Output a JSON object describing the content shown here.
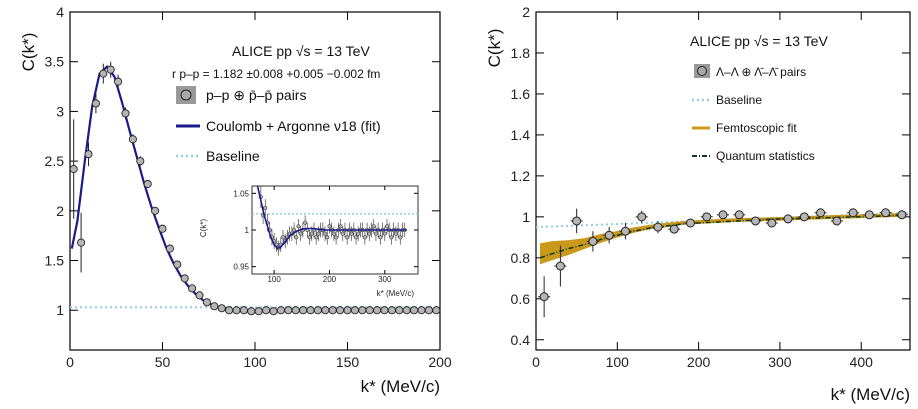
{
  "chart_data": [
    {
      "type": "scatter",
      "panel": "left",
      "ylabel": "C(k*)",
      "xlabel": "k* (MeV/c)",
      "xlim": [
        0,
        200
      ],
      "ylim": [
        0.6,
        4
      ],
      "xticks": [
        0,
        50,
        100,
        150,
        200
      ],
      "yticks": [
        1,
        1.5,
        2,
        2.5,
        3,
        3.5,
        4
      ],
      "annotations": [
        {
          "text": "ALICE pp √s = 13 TeV"
        },
        {
          "text": "r p–p = 1.182 ±0.008 +0.005 −0.002 fm"
        }
      ],
      "legend": [
        {
          "label": "p–p ⊕ p̄–p̄ pairs",
          "kind": "data"
        },
        {
          "label": "Coulomb + Argonne ν18 (fit)",
          "kind": "fit",
          "color": "#1a1a8c"
        },
        {
          "label": "Baseline",
          "kind": "baseline",
          "color": "#8fd0dc"
        }
      ],
      "series": [
        {
          "name": "p–p ⊕ p̄–p̄ pairs",
          "x": [
            2,
            6,
            10,
            14,
            18,
            22,
            26,
            30,
            34,
            38,
            42,
            46,
            50,
            54,
            58,
            62,
            66,
            70,
            74,
            78,
            82,
            86,
            90,
            94,
            98,
            102,
            106,
            110,
            114,
            118,
            122,
            126,
            130,
            134,
            138,
            142,
            146,
            150,
            154,
            158,
            162,
            166,
            170,
            174,
            178,
            182,
            186,
            190,
            194,
            198
          ],
          "y": [
            2.42,
            1.68,
            2.57,
            3.08,
            3.38,
            3.42,
            3.3,
            2.98,
            2.72,
            2.5,
            2.27,
            2.0,
            1.82,
            1.62,
            1.46,
            1.32,
            1.22,
            1.15,
            1.08,
            1.04,
            1.02,
            1.0,
            1.0,
            1.0,
            0.99,
            0.99,
            1.0,
            0.99,
            1.0,
            1.0,
            1.0,
            1.0,
            1.0,
            1.0,
            1.0,
            1.0,
            1.0,
            1.0,
            1.0,
            1.0,
            1.0,
            1.0,
            1.0,
            1.0,
            1.0,
            1.0,
            1.0,
            1.0,
            1.0,
            1.0
          ],
          "err": [
            0.5,
            0.3,
            0.12,
            0.1,
            0.1,
            0.08,
            0.07,
            0.06,
            0.05,
            0.05,
            0.04,
            0.04,
            0.03,
            0.03,
            0.03,
            0.02,
            0.02,
            0.02,
            0.02,
            0.02,
            0.02,
            0.02,
            0.02,
            0.02,
            0.02,
            0.02,
            0.02,
            0.02,
            0.02,
            0.02,
            0.02,
            0.02,
            0.02,
            0.02,
            0.02,
            0.02,
            0.02,
            0.02,
            0.02,
            0.02,
            0.02,
            0.02,
            0.02,
            0.02,
            0.02,
            0.02,
            0.02,
            0.02,
            0.02,
            0.02
          ]
        },
        {
          "name": "Coulomb + Argonne ν18 (fit)",
          "x": [
            1,
            4,
            8,
            12,
            16,
            20,
            24,
            28,
            32,
            36,
            40,
            44,
            48,
            52,
            56,
            60,
            64,
            68,
            72,
            76,
            80,
            84,
            88,
            92,
            96,
            100,
            110,
            120,
            140,
            160,
            180,
            200
          ],
          "y": [
            1.62,
            1.9,
            2.5,
            3.05,
            3.38,
            3.45,
            3.35,
            3.1,
            2.82,
            2.55,
            2.28,
            2.04,
            1.83,
            1.63,
            1.47,
            1.34,
            1.24,
            1.16,
            1.1,
            1.06,
            1.03,
            1.01,
            1.0,
            0.995,
            0.99,
            0.99,
            0.995,
            1.0,
            1.0,
            1.0,
            1.0,
            1.0
          ]
        },
        {
          "name": "Baseline",
          "x": [
            0,
            200
          ],
          "y": [
            1.03,
            1.03
          ]
        }
      ],
      "inset": {
        "ylabel": "C(k*)",
        "xlabel": "k* (MeV/c)",
        "xlim": [
          60,
          360
        ],
        "ylim": [
          0.94,
          1.06
        ],
        "xticks": [
          100,
          200,
          300
        ],
        "yticks": [
          0.95,
          1,
          1.05
        ],
        "data": {
          "x": [
            76,
            80,
            84,
            88,
            92,
            96,
            100,
            104,
            108,
            112,
            116,
            120,
            124,
            128,
            132,
            136,
            140,
            144,
            148,
            152,
            156,
            160,
            164,
            168,
            172,
            176,
            180,
            184,
            188,
            192,
            196,
            200,
            204,
            208,
            212,
            216,
            220,
            224,
            228,
            232,
            236,
            240,
            244,
            248,
            252,
            256,
            260,
            264,
            268,
            272,
            276,
            280,
            284,
            288,
            292,
            296,
            300,
            304,
            308,
            312,
            316,
            320,
            324,
            328,
            332,
            336
          ],
          "y": [
            1.045,
            1.02,
            1.03,
            1.01,
            1.0,
            0.99,
            0.985,
            0.98,
            0.975,
            0.98,
            0.99,
            0.985,
            0.99,
            0.995,
            0.995,
            1.0,
            0.99,
            1.005,
            0.995,
            1.0,
            1.01,
            1.0,
            0.99,
            0.995,
            1.0,
            0.99,
            0.995,
            1.0,
            1.0,
            0.995,
            0.99,
            1.005,
            1.0,
            0.995,
            0.99,
            1.0,
            1.005,
            0.995,
            1.0,
            0.99,
            1.0,
            0.995,
            1.0,
            0.99,
            0.995,
            1.0,
            1.0,
            0.99,
            1.0,
            0.995,
            1.0,
            1.005,
            0.995,
            1.0,
            0.99,
            1.0,
            0.995,
            1.005,
            1.0,
            0.99,
            1.0,
            0.995,
            1.0,
            0.99,
            1.0,
            1.0
          ],
          "err": [
            0.015,
            0.012,
            0.012,
            0.012,
            0.011,
            0.011,
            0.011,
            0.01,
            0.01,
            0.01,
            0.01,
            0.01,
            0.01,
            0.01,
            0.01,
            0.01,
            0.01,
            0.01,
            0.01,
            0.01,
            0.01,
            0.01,
            0.01,
            0.01,
            0.01,
            0.01,
            0.01,
            0.01,
            0.01,
            0.01,
            0.01,
            0.01,
            0.01,
            0.01,
            0.01,
            0.01,
            0.01,
            0.01,
            0.01,
            0.01,
            0.01,
            0.01,
            0.01,
            0.01,
            0.01,
            0.01,
            0.01,
            0.01,
            0.01,
            0.01,
            0.01,
            0.01,
            0.01,
            0.01,
            0.01,
            0.01,
            0.01,
            0.01,
            0.01,
            0.01,
            0.01,
            0.01,
            0.01,
            0.01,
            0.01,
            0.01
          ]
        },
        "fit": {
          "x": [
            70,
            76,
            82,
            88,
            94,
            100,
            106,
            112,
            118,
            124,
            130,
            140,
            150,
            160,
            170,
            180,
            190,
            200,
            220,
            240,
            260,
            280,
            300,
            320,
            340
          ],
          "y": [
            1.06,
            1.04,
            1.02,
            1.005,
            0.99,
            0.98,
            0.975,
            0.977,
            0.982,
            0.988,
            0.993,
            0.998,
            1.001,
            1.002,
            1.002,
            1.001,
            1.0,
            1.0,
            1.0,
            1.0,
            1.0,
            1.0,
            1.0,
            1.0,
            1.0
          ]
        },
        "baseline": 1.022
      }
    },
    {
      "type": "scatter",
      "panel": "right",
      "ylabel": "C(k*)",
      "xlabel": "k* (MeV/c)",
      "xlim": [
        0,
        460
      ],
      "ylim": [
        0.35,
        2.0
      ],
      "xticks": [
        0,
        100,
        200,
        300,
        400
      ],
      "yticks": [
        0.4,
        0.6,
        0.8,
        1,
        1.2,
        1.4,
        1.6,
        1.8,
        2
      ],
      "annotations": [
        {
          "text": "ALICE pp √s = 13 TeV"
        }
      ],
      "legend": [
        {
          "label": "Λ–Λ ⊕ Λ̄–Λ̄ pairs",
          "kind": "data"
        },
        {
          "label": "Baseline",
          "kind": "baseline",
          "color": "#8fd0dc"
        },
        {
          "label": "Femtoscopic fit",
          "kind": "fit",
          "color": "#d39a17"
        },
        {
          "label": "Quantum statistics",
          "kind": "qs",
          "color": "#0f3d1f"
        }
      ],
      "series": [
        {
          "name": "Λ–Λ ⊕ Λ̄–Λ̄ pairs",
          "x": [
            10,
            30,
            50,
            70,
            90,
            110,
            130,
            150,
            170,
            190,
            210,
            230,
            250,
            270,
            290,
            310,
            330,
            350,
            370,
            390,
            410,
            430,
            450
          ],
          "y": [
            0.61,
            0.76,
            0.98,
            0.88,
            0.91,
            0.93,
            1.0,
            0.95,
            0.94,
            0.97,
            1.0,
            1.01,
            1.01,
            0.98,
            0.97,
            0.99,
            1.0,
            1.02,
            0.98,
            1.02,
            1.01,
            1.02,
            1.01
          ],
          "err": [
            0.1,
            0.1,
            0.06,
            0.05,
            0.04,
            0.04,
            0.03,
            0.03,
            0.02,
            0.02,
            0.02,
            0.02,
            0.02,
            0.02,
            0.02,
            0.02,
            0.02,
            0.02,
            0.02,
            0.02,
            0.02,
            0.02,
            0.02
          ]
        },
        {
          "name": "Femtoscopic fit",
          "x": [
            5,
            20,
            40,
            60,
            80,
            100,
            120,
            140,
            160,
            180,
            200,
            250,
            300,
            350,
            400,
            455
          ],
          "y": [
            0.82,
            0.835,
            0.85,
            0.87,
            0.895,
            0.915,
            0.935,
            0.95,
            0.96,
            0.97,
            0.975,
            0.985,
            0.99,
            0.997,
            1.003,
            1.01
          ],
          "band": [
            0.05,
            0.045,
            0.035,
            0.025,
            0.02,
            0.015,
            0.012,
            0.01,
            0.01,
            0.008,
            0.008,
            0.008,
            0.008,
            0.008,
            0.008,
            0.008
          ]
        },
        {
          "name": "Quantum statistics",
          "x": [
            5,
            20,
            40,
            60,
            80,
            100,
            120,
            140,
            160,
            180,
            200,
            250,
            300,
            350,
            400,
            455
          ],
          "y": [
            0.8,
            0.82,
            0.845,
            0.865,
            0.89,
            0.91,
            0.93,
            0.945,
            0.955,
            0.965,
            0.97,
            0.98,
            0.99,
            0.995,
            1.0,
            1.008
          ]
        },
        {
          "name": "Baseline",
          "x": [
            0,
            460
          ],
          "y": [
            0.95,
            1.02
          ]
        }
      ]
    }
  ]
}
